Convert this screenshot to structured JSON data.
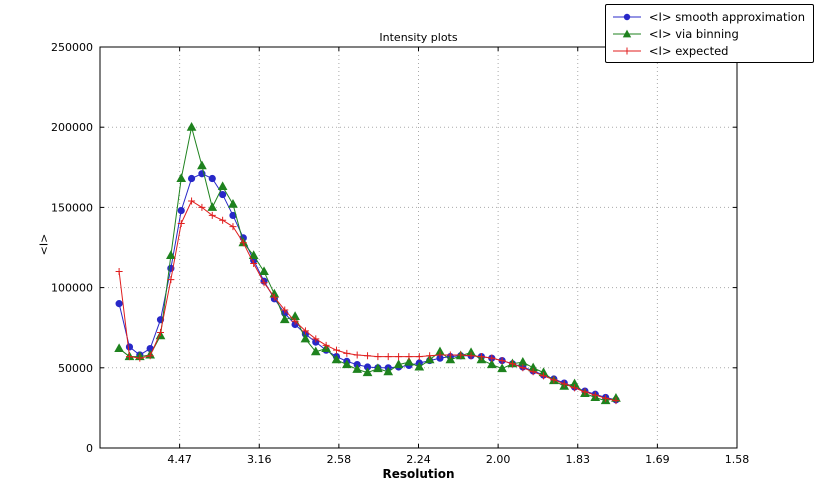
{
  "chart_data": {
    "type": "line",
    "title": "Intensity plots",
    "xlabel": "Resolution",
    "ylabel": "<I>",
    "xlim": [
      0,
      0.4
    ],
    "ylim": [
      0,
      250000
    ],
    "grid": true,
    "legend_position": "upper right",
    "x_ticks": [
      {
        "value": 0.05,
        "label": "4.47"
      },
      {
        "value": 0.1,
        "label": "3.16"
      },
      {
        "value": 0.15,
        "label": "2.58"
      },
      {
        "value": 0.2,
        "label": "2.24"
      },
      {
        "value": 0.25,
        "label": "2.00"
      },
      {
        "value": 0.3,
        "label": "1.83"
      },
      {
        "value": 0.35,
        "label": "1.69"
      },
      {
        "value": 0.4,
        "label": "1.58"
      }
    ],
    "y_ticks": [
      {
        "value": 0,
        "label": "0"
      },
      {
        "value": 50000,
        "label": "50000"
      },
      {
        "value": 100000,
        "label": "100000"
      },
      {
        "value": 150000,
        "label": "150000"
      },
      {
        "value": 200000,
        "label": "200000"
      },
      {
        "value": 250000,
        "label": "250000"
      }
    ],
    "x": [
      0.012,
      0.0185,
      0.025,
      0.0315,
      0.038,
      0.0445,
      0.051,
      0.0575,
      0.064,
      0.0705,
      0.077,
      0.0835,
      0.09,
      0.0965,
      0.103,
      0.1095,
      0.116,
      0.1225,
      0.129,
      0.1355,
      0.142,
      0.1485,
      0.155,
      0.1615,
      0.168,
      0.1745,
      0.181,
      0.1875,
      0.194,
      0.2005,
      0.207,
      0.2135,
      0.22,
      0.2265,
      0.233,
      0.2395,
      0.246,
      0.2525,
      0.259,
      0.2655,
      0.272,
      0.2785,
      0.285,
      0.2915,
      0.298,
      0.3045,
      0.311,
      0.3175,
      0.324
    ],
    "series": [
      {
        "name": "<I> smooth approximation",
        "color": "#2828c8",
        "marker": "circle",
        "values": [
          90000,
          63000,
          58000,
          62000,
          80000,
          112000,
          148000,
          168000,
          171000,
          168000,
          158000,
          145000,
          131000,
          117000,
          104000,
          93000,
          84000,
          77000,
          71000,
          66000,
          61000,
          57000,
          54000,
          52000,
          50500,
          50000,
          50000,
          50500,
          51500,
          53000,
          54500,
          56000,
          57000,
          57500,
          57500,
          57000,
          56000,
          54500,
          52500,
          50500,
          48000,
          45500,
          43000,
          40500,
          38000,
          35500,
          33500,
          31500,
          30000
        ]
      },
      {
        "name": "<I> via binning",
        "color": "#1e821e",
        "marker": "triangle",
        "values": [
          62000,
          57000,
          57000,
          58000,
          70000,
          120000,
          168000,
          200000,
          176000,
          150000,
          163000,
          152000,
          128000,
          120000,
          110000,
          96000,
          80000,
          82000,
          68000,
          60000,
          62000,
          55000,
          52000,
          49000,
          47000,
          49500,
          47500,
          52000,
          53500,
          50500,
          55000,
          60000,
          55000,
          57500,
          59500,
          55000,
          52000,
          49500,
          52500,
          53500,
          50000,
          47000,
          42000,
          38500,
          40000,
          34000,
          31500,
          29500,
          31000
        ]
      },
      {
        "name": "<I> expected",
        "color": "#e01e1e",
        "marker": "plus",
        "values": [
          110000,
          57000,
          56000,
          57500,
          72000,
          105000,
          140000,
          154000,
          150000,
          145000,
          142000,
          138000,
          128000,
          115000,
          103000,
          94000,
          86000,
          79000,
          73000,
          68000,
          64000,
          61000,
          59000,
          58000,
          57500,
          57000,
          57000,
          57000,
          57000,
          57000,
          57500,
          58000,
          58000,
          58000,
          57500,
          57000,
          56000,
          54500,
          52500,
          50000,
          47500,
          45000,
          42500,
          40000,
          37500,
          35000,
          33000,
          31000,
          29500
        ]
      }
    ]
  }
}
